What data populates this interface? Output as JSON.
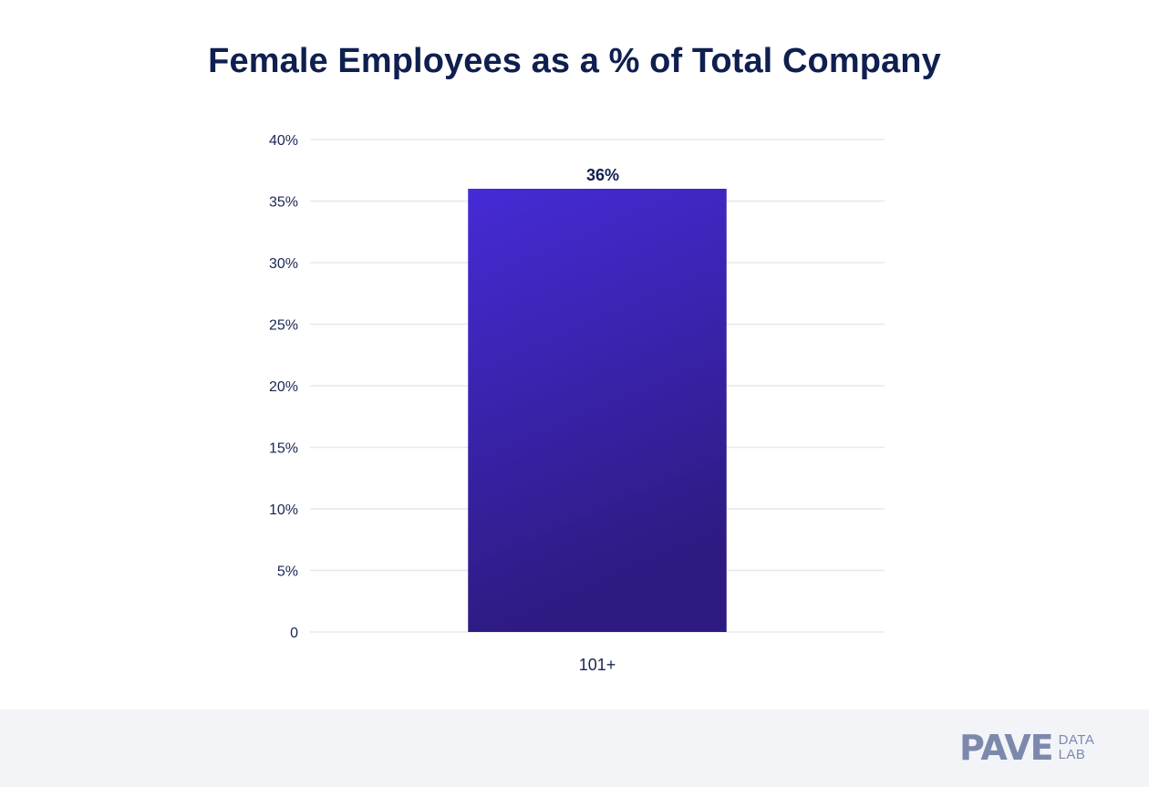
{
  "chart_data": {
    "type": "bar",
    "title": "Female Employees as a % of Total Company",
    "categories": [
      "101+"
    ],
    "values": [
      36
    ],
    "data_labels": [
      "36%"
    ],
    "ylim": [
      0,
      40
    ],
    "yticks": [
      0,
      5,
      10,
      15,
      20,
      25,
      30,
      35,
      40
    ],
    "ytick_labels": [
      "0",
      "5%",
      "10%",
      "15%",
      "20%",
      "25%",
      "30%",
      "35%",
      "40%"
    ],
    "grid": true,
    "legend": "none",
    "colors": {
      "bar_top": "#452bd6",
      "bar_bottom": "#2e1a80",
      "grid": "#e6e8ee"
    }
  },
  "footer": {
    "logo_main": "PAVE",
    "logo_sub_1": "DATA",
    "logo_sub_2": "LAB"
  }
}
